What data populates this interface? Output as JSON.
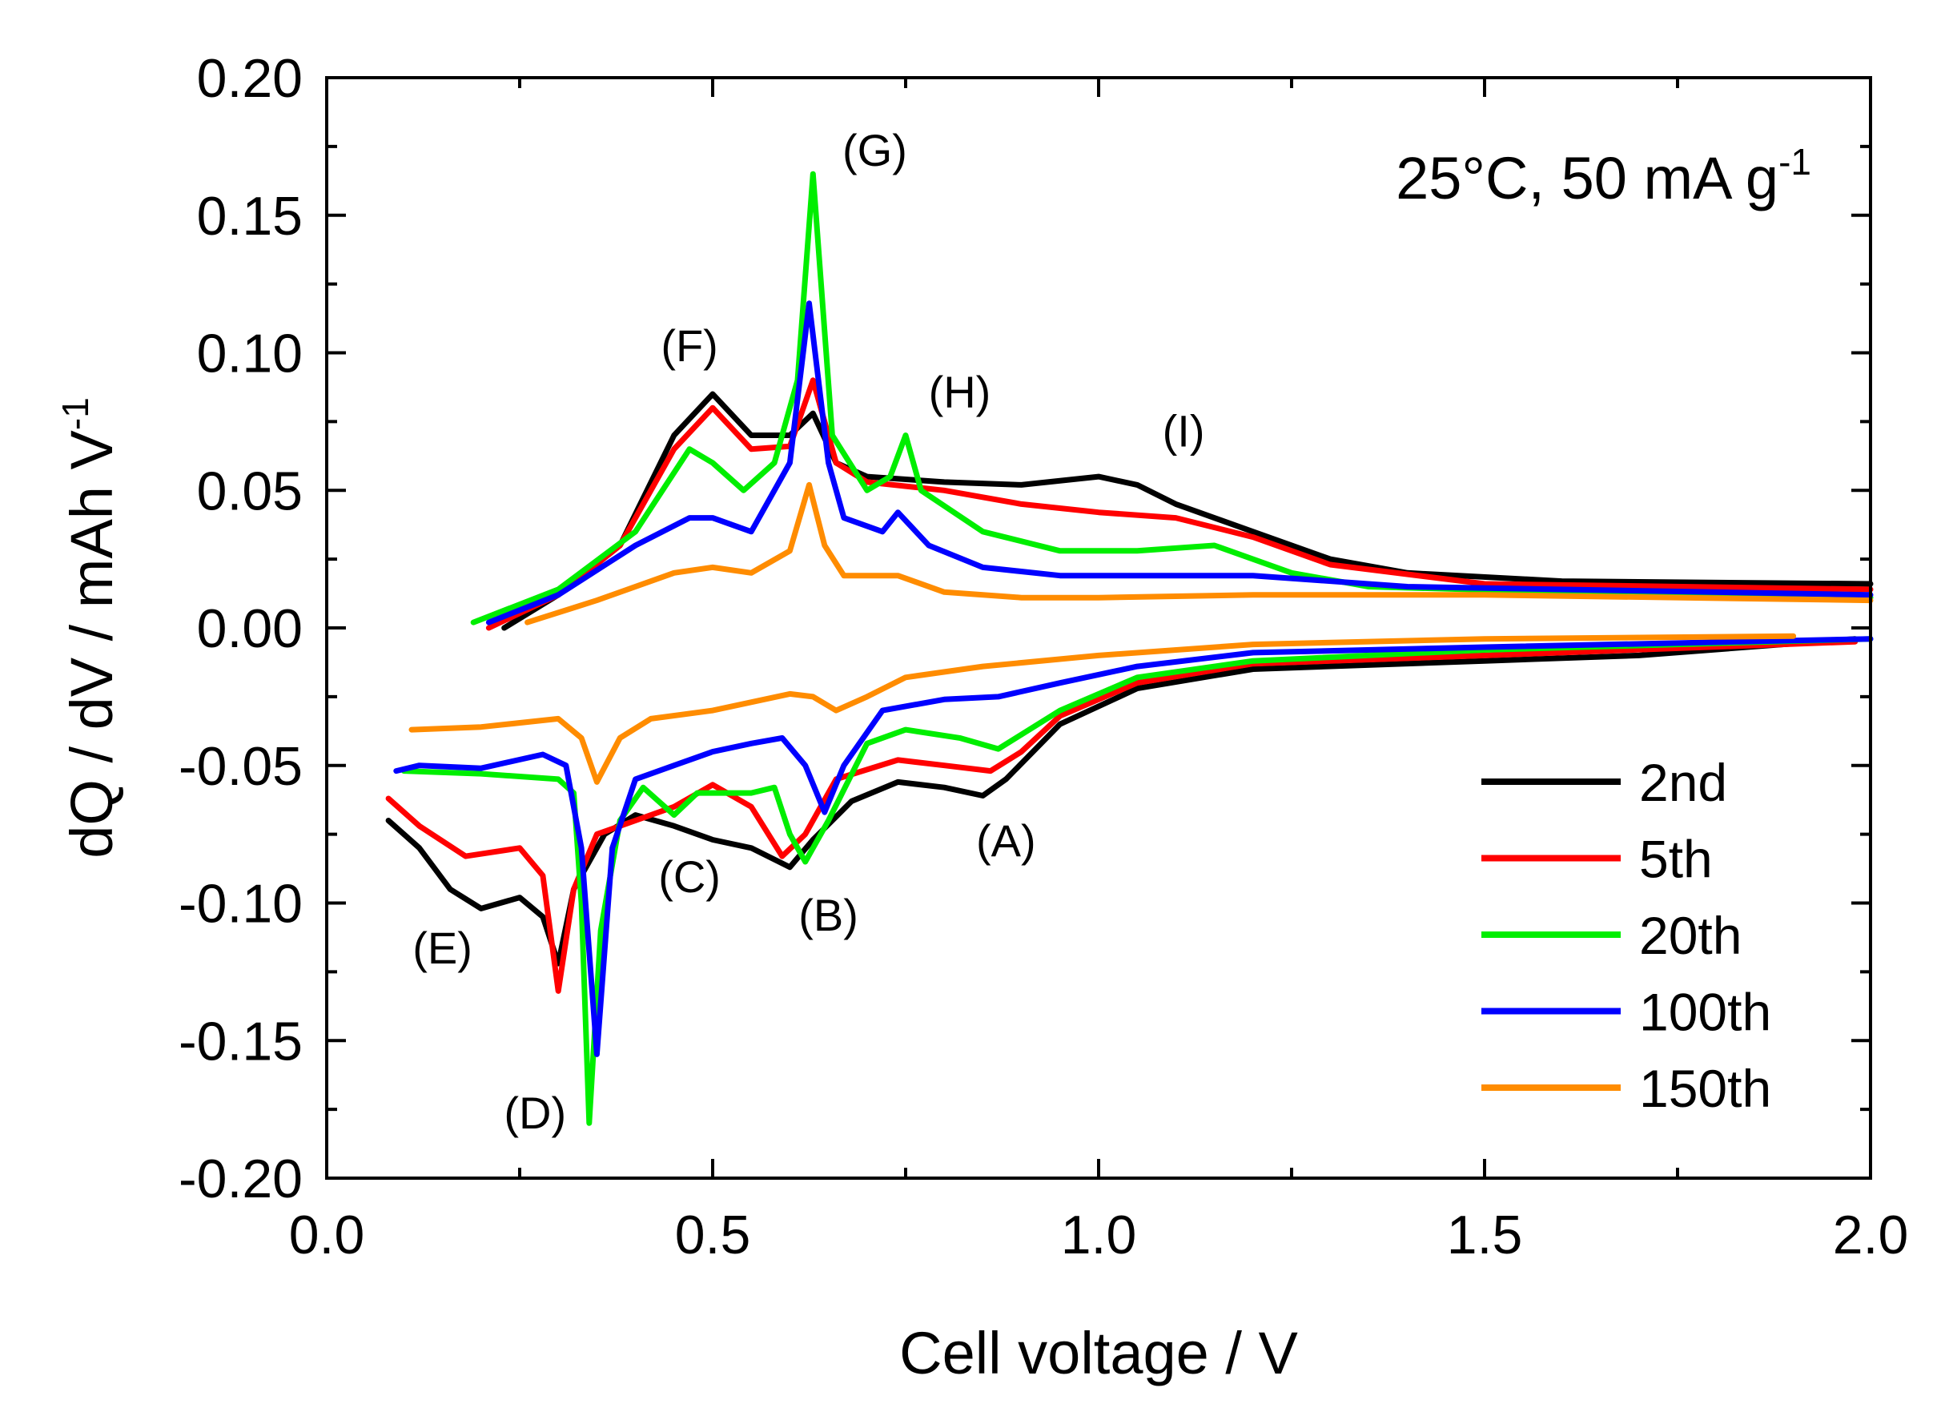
{
  "chart_data": {
    "type": "line",
    "title": "",
    "condition_note": "25°C, 50 mA g",
    "condition_note_sup": "-1",
    "xlabel": "Cell voltage / V",
    "ylabel": "dQ / dV / mAh V",
    "ylabel_sup": "-1",
    "xlim": [
      0.0,
      2.0
    ],
    "ylim": [
      -0.2,
      0.2
    ],
    "xticks": [
      "0.0",
      "0.5",
      "1.0",
      "1.5",
      "2.0"
    ],
    "yticks": [
      "0.20",
      "0.15",
      "0.10",
      "0.05",
      "0.00",
      "-0.05",
      "-0.10",
      "-0.15",
      "-0.20"
    ],
    "grid": false,
    "legend_position": "bottom-right",
    "series": [
      {
        "name": "2nd",
        "color": "#000000",
        "charge": [
          [
            0.23,
            0.0
          ],
          [
            0.3,
            0.012
          ],
          [
            0.38,
            0.03
          ],
          [
            0.45,
            0.07
          ],
          [
            0.5,
            0.085
          ],
          [
            0.55,
            0.07
          ],
          [
            0.6,
            0.07
          ],
          [
            0.63,
            0.078
          ],
          [
            0.66,
            0.06
          ],
          [
            0.7,
            0.055
          ],
          [
            0.8,
            0.053
          ],
          [
            0.9,
            0.052
          ],
          [
            1.0,
            0.055
          ],
          [
            1.05,
            0.052
          ],
          [
            1.1,
            0.045
          ],
          [
            1.2,
            0.035
          ],
          [
            1.3,
            0.025
          ],
          [
            1.4,
            0.02
          ],
          [
            1.6,
            0.017
          ],
          [
            2.0,
            0.016
          ]
        ],
        "discharge": [
          [
            0.08,
            -0.07
          ],
          [
            0.12,
            -0.08
          ],
          [
            0.16,
            -0.095
          ],
          [
            0.2,
            -0.102
          ],
          [
            0.25,
            -0.098
          ],
          [
            0.28,
            -0.105
          ],
          [
            0.3,
            -0.122
          ],
          [
            0.32,
            -0.095
          ],
          [
            0.36,
            -0.075
          ],
          [
            0.4,
            -0.068
          ],
          [
            0.45,
            -0.072
          ],
          [
            0.5,
            -0.077
          ],
          [
            0.55,
            -0.08
          ],
          [
            0.6,
            -0.087
          ],
          [
            0.63,
            -0.077
          ],
          [
            0.68,
            -0.063
          ],
          [
            0.74,
            -0.056
          ],
          [
            0.8,
            -0.058
          ],
          [
            0.85,
            -0.061
          ],
          [
            0.88,
            -0.055
          ],
          [
            0.95,
            -0.035
          ],
          [
            1.05,
            -0.022
          ],
          [
            1.2,
            -0.015
          ],
          [
            1.5,
            -0.012
          ],
          [
            1.7,
            -0.01
          ],
          [
            1.98,
            -0.004
          ]
        ]
      },
      {
        "name": "5th",
        "color": "#ff0000",
        "charge": [
          [
            0.21,
            0.0
          ],
          [
            0.3,
            0.012
          ],
          [
            0.38,
            0.03
          ],
          [
            0.45,
            0.065
          ],
          [
            0.5,
            0.08
          ],
          [
            0.55,
            0.065
          ],
          [
            0.6,
            0.066
          ],
          [
            0.63,
            0.09
          ],
          [
            0.66,
            0.06
          ],
          [
            0.7,
            0.053
          ],
          [
            0.8,
            0.05
          ],
          [
            0.9,
            0.045
          ],
          [
            1.0,
            0.042
          ],
          [
            1.1,
            0.04
          ],
          [
            1.2,
            0.033
          ],
          [
            1.3,
            0.023
          ],
          [
            1.5,
            0.016
          ],
          [
            2.0,
            0.014
          ]
        ],
        "discharge": [
          [
            0.08,
            -0.062
          ],
          [
            0.12,
            -0.072
          ],
          [
            0.18,
            -0.083
          ],
          [
            0.25,
            -0.08
          ],
          [
            0.28,
            -0.09
          ],
          [
            0.3,
            -0.132
          ],
          [
            0.32,
            -0.095
          ],
          [
            0.35,
            -0.075
          ],
          [
            0.4,
            -0.07
          ],
          [
            0.45,
            -0.065
          ],
          [
            0.5,
            -0.057
          ],
          [
            0.55,
            -0.065
          ],
          [
            0.59,
            -0.083
          ],
          [
            0.62,
            -0.075
          ],
          [
            0.66,
            -0.055
          ],
          [
            0.74,
            -0.048
          ],
          [
            0.8,
            -0.05
          ],
          [
            0.86,
            -0.052
          ],
          [
            0.9,
            -0.045
          ],
          [
            0.95,
            -0.032
          ],
          [
            1.05,
            -0.02
          ],
          [
            1.2,
            -0.013
          ],
          [
            1.5,
            -0.01
          ],
          [
            1.98,
            -0.005
          ]
        ]
      },
      {
        "name": "20th",
        "color": "#00ee00",
        "charge": [
          [
            0.19,
            0.002
          ],
          [
            0.3,
            0.014
          ],
          [
            0.4,
            0.035
          ],
          [
            0.47,
            0.065
          ],
          [
            0.5,
            0.06
          ],
          [
            0.54,
            0.05
          ],
          [
            0.58,
            0.06
          ],
          [
            0.61,
            0.09
          ],
          [
            0.63,
            0.165
          ],
          [
            0.655,
            0.07
          ],
          [
            0.7,
            0.05
          ],
          [
            0.73,
            0.055
          ],
          [
            0.75,
            0.07
          ],
          [
            0.77,
            0.05
          ],
          [
            0.85,
            0.035
          ],
          [
            0.95,
            0.028
          ],
          [
            1.05,
            0.028
          ],
          [
            1.15,
            0.03
          ],
          [
            1.25,
            0.02
          ],
          [
            1.35,
            0.015
          ],
          [
            1.6,
            0.013
          ],
          [
            2.0,
            0.011
          ]
        ],
        "discharge": [
          [
            0.1,
            -0.052
          ],
          [
            0.2,
            -0.053
          ],
          [
            0.3,
            -0.055
          ],
          [
            0.32,
            -0.06
          ],
          [
            0.33,
            -0.1
          ],
          [
            0.34,
            -0.18
          ],
          [
            0.355,
            -0.11
          ],
          [
            0.38,
            -0.07
          ],
          [
            0.41,
            -0.058
          ],
          [
            0.45,
            -0.068
          ],
          [
            0.48,
            -0.06
          ],
          [
            0.55,
            -0.06
          ],
          [
            0.58,
            -0.058
          ],
          [
            0.6,
            -0.075
          ],
          [
            0.62,
            -0.085
          ],
          [
            0.65,
            -0.07
          ],
          [
            0.7,
            -0.042
          ],
          [
            0.75,
            -0.037
          ],
          [
            0.82,
            -0.04
          ],
          [
            0.87,
            -0.044
          ],
          [
            0.95,
            -0.03
          ],
          [
            1.05,
            -0.018
          ],
          [
            1.2,
            -0.012
          ],
          [
            1.5,
            -0.008
          ],
          [
            2.0,
            -0.004
          ]
        ]
      },
      {
        "name": "100th",
        "color": "#0000ff",
        "charge": [
          [
            0.21,
            0.002
          ],
          [
            0.3,
            0.012
          ],
          [
            0.4,
            0.03
          ],
          [
            0.47,
            0.04
          ],
          [
            0.5,
            0.04
          ],
          [
            0.55,
            0.035
          ],
          [
            0.6,
            0.06
          ],
          [
            0.625,
            0.118
          ],
          [
            0.65,
            0.06
          ],
          [
            0.67,
            0.04
          ],
          [
            0.72,
            0.035
          ],
          [
            0.74,
            0.042
          ],
          [
            0.78,
            0.03
          ],
          [
            0.85,
            0.022
          ],
          [
            0.95,
            0.019
          ],
          [
            1.1,
            0.019
          ],
          [
            1.2,
            0.019
          ],
          [
            1.4,
            0.015
          ],
          [
            2.0,
            0.012
          ]
        ],
        "discharge": [
          [
            0.09,
            -0.052
          ],
          [
            0.12,
            -0.05
          ],
          [
            0.2,
            -0.051
          ],
          [
            0.28,
            -0.046
          ],
          [
            0.31,
            -0.05
          ],
          [
            0.33,
            -0.08
          ],
          [
            0.35,
            -0.155
          ],
          [
            0.37,
            -0.08
          ],
          [
            0.4,
            -0.055
          ],
          [
            0.45,
            -0.05
          ],
          [
            0.5,
            -0.045
          ],
          [
            0.55,
            -0.042
          ],
          [
            0.59,
            -0.04
          ],
          [
            0.62,
            -0.05
          ],
          [
            0.645,
            -0.067
          ],
          [
            0.67,
            -0.05
          ],
          [
            0.72,
            -0.03
          ],
          [
            0.8,
            -0.026
          ],
          [
            0.87,
            -0.025
          ],
          [
            0.95,
            -0.02
          ],
          [
            1.05,
            -0.014
          ],
          [
            1.2,
            -0.009
          ],
          [
            1.5,
            -0.007
          ],
          [
            2.0,
            -0.004
          ]
        ]
      },
      {
        "name": "150th",
        "color": "#ff8c00",
        "charge": [
          [
            0.26,
            0.002
          ],
          [
            0.35,
            0.01
          ],
          [
            0.45,
            0.02
          ],
          [
            0.5,
            0.022
          ],
          [
            0.55,
            0.02
          ],
          [
            0.6,
            0.028
          ],
          [
            0.625,
            0.052
          ],
          [
            0.645,
            0.03
          ],
          [
            0.67,
            0.019
          ],
          [
            0.74,
            0.019
          ],
          [
            0.8,
            0.013
          ],
          [
            0.9,
            0.011
          ],
          [
            1.0,
            0.011
          ],
          [
            1.2,
            0.012
          ],
          [
            1.5,
            0.012
          ],
          [
            2.0,
            0.01
          ]
        ],
        "discharge": [
          [
            0.11,
            -0.037
          ],
          [
            0.2,
            -0.036
          ],
          [
            0.3,
            -0.033
          ],
          [
            0.33,
            -0.04
          ],
          [
            0.35,
            -0.056
          ],
          [
            0.38,
            -0.04
          ],
          [
            0.42,
            -0.033
          ],
          [
            0.5,
            -0.03
          ],
          [
            0.6,
            -0.024
          ],
          [
            0.63,
            -0.025
          ],
          [
            0.66,
            -0.03
          ],
          [
            0.7,
            -0.025
          ],
          [
            0.75,
            -0.018
          ],
          [
            0.85,
            -0.014
          ],
          [
            1.0,
            -0.01
          ],
          [
            1.2,
            -0.006
          ],
          [
            1.5,
            -0.004
          ],
          [
            1.9,
            -0.003
          ]
        ]
      }
    ],
    "annotations": [
      {
        "label": "(A)",
        "x": 0.88,
        "y": -0.083
      },
      {
        "label": "(B)",
        "x": 0.65,
        "y": -0.11
      },
      {
        "label": "(C)",
        "x": 0.47,
        "y": -0.096
      },
      {
        "label": "(D)",
        "x": 0.27,
        "y": -0.182
      },
      {
        "label": "(E)",
        "x": 0.15,
        "y": -0.122
      },
      {
        "label": "(F)",
        "x": 0.47,
        "y": 0.097
      },
      {
        "label": "(G)",
        "x": 0.71,
        "y": 0.168
      },
      {
        "label": "(H)",
        "x": 0.82,
        "y": 0.08
      },
      {
        "label": "(I)",
        "x": 1.11,
        "y": 0.066
      }
    ]
  }
}
